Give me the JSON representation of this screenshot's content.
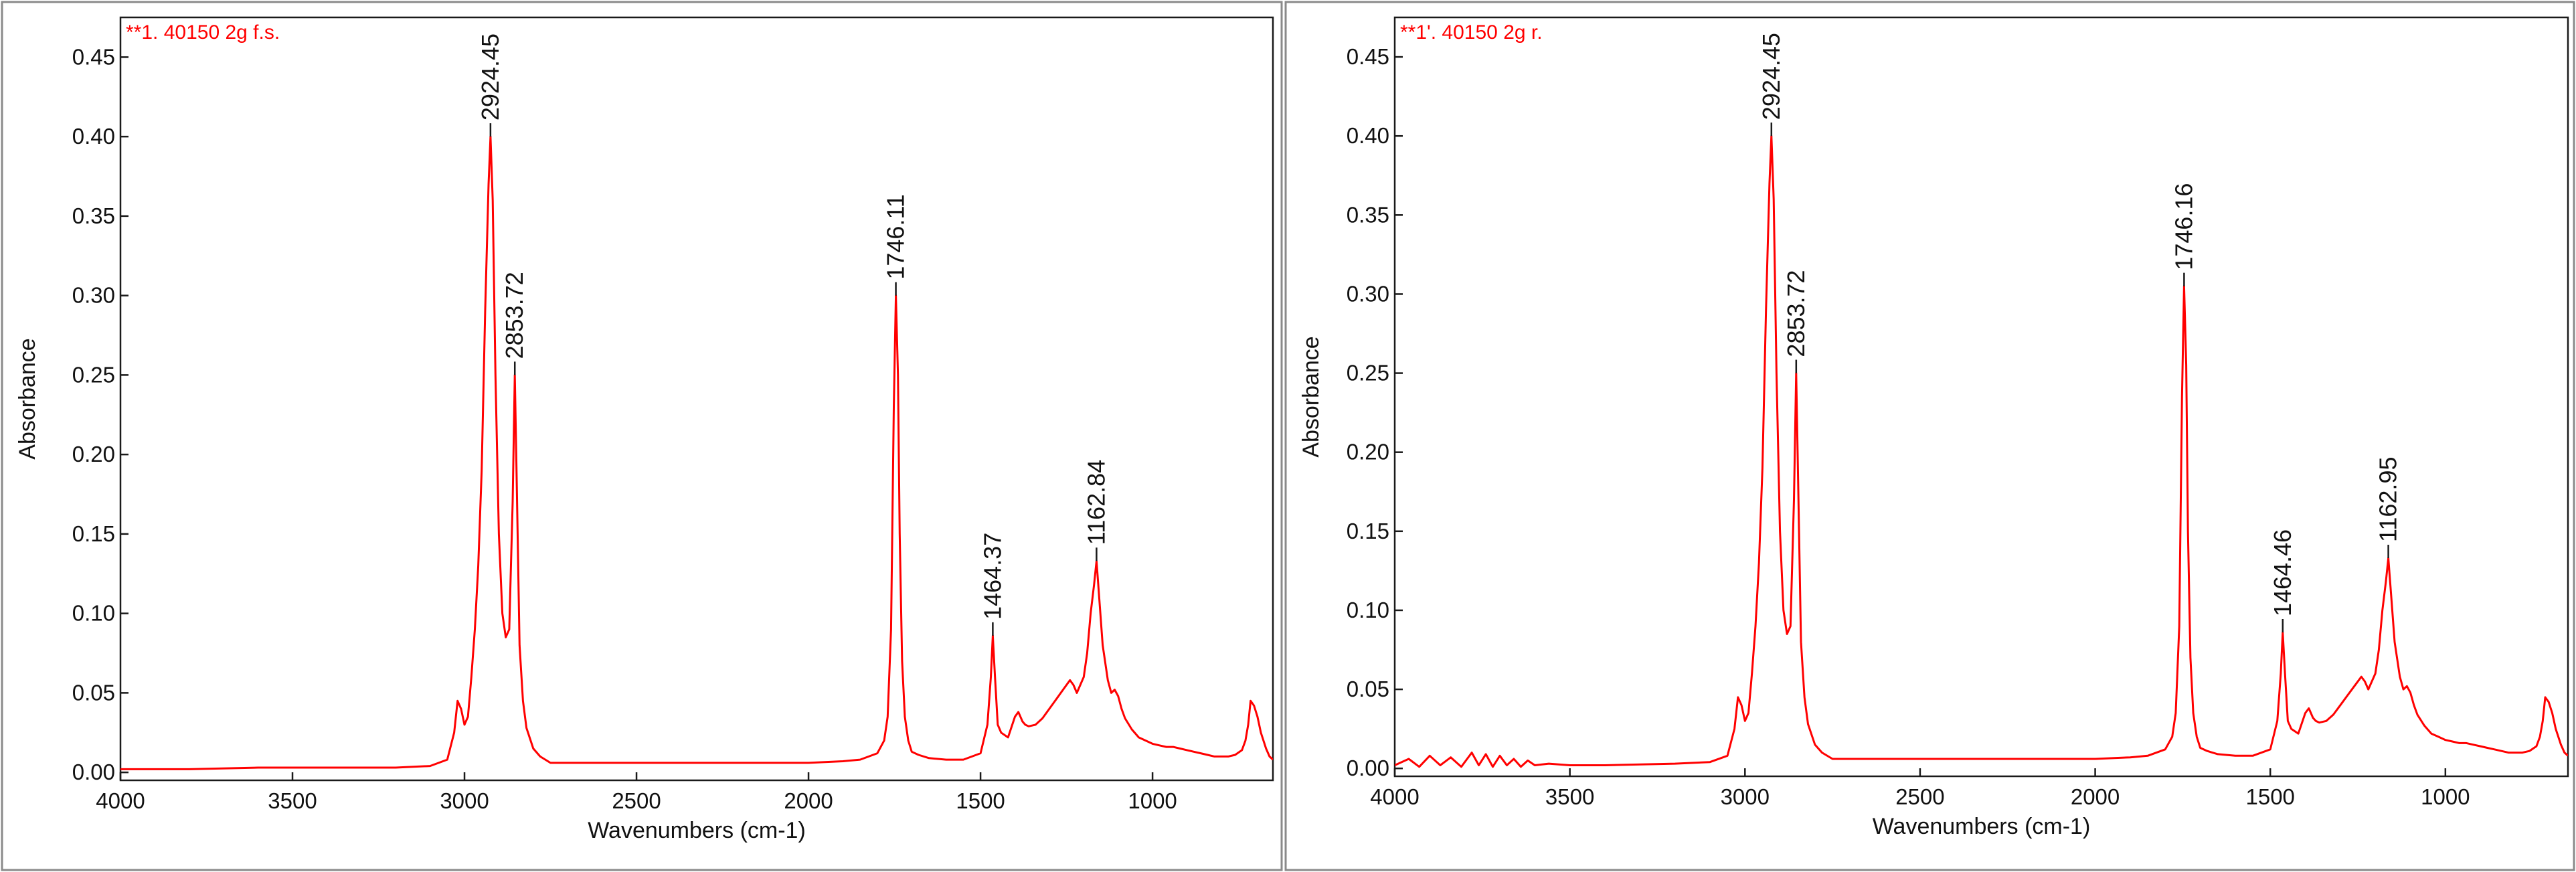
{
  "colors": {
    "spectrum": "#ff0000",
    "title": "#ff0000",
    "axis": "#1a1a1a"
  },
  "chart_data": [
    {
      "type": "line",
      "title": "**1. 40150 2g f.s.",
      "xlabel": "Wavenumbers (cm-1)",
      "ylabel": "Absorbance",
      "xlim": [
        4000,
        650
      ],
      "ylim": [
        -0.005,
        0.475
      ],
      "x_reversed": true,
      "grid": false,
      "xticks": [
        4000,
        3500,
        3000,
        2500,
        2000,
        1500,
        1000
      ],
      "xtick_labels": [
        "4000",
        "3500",
        "3000",
        "2500",
        "2000",
        "1500",
        "1000"
      ],
      "yticks": [
        0.0,
        0.05,
        0.1,
        0.15,
        0.2,
        0.25,
        0.3,
        0.35,
        0.4,
        0.45
      ],
      "ytick_labels": [
        "0.00",
        "0.05",
        "0.10",
        "0.15",
        "0.20",
        "0.25",
        "0.30",
        "0.35",
        "0.40",
        "0.45"
      ],
      "peaks": [
        {
          "x": 2924.45,
          "y": 0.4,
          "label": "2924.45"
        },
        {
          "x": 2853.72,
          "y": 0.25,
          "label": "2853.72"
        },
        {
          "x": 1746.11,
          "y": 0.3,
          "label": "1746.11"
        },
        {
          "x": 1464.37,
          "y": 0.086,
          "label": "1464.37"
        },
        {
          "x": 1162.84,
          "y": 0.133,
          "label": "1162.84"
        }
      ],
      "series": [
        {
          "x": [
            4000,
            3800,
            3600,
            3400,
            3200,
            3100,
            3050,
            3030,
            3020,
            3010,
            3000,
            2990,
            2980,
            2970,
            2960,
            2950,
            2940,
            2930,
            2924.45,
            2918,
            2910,
            2900,
            2890,
            2880,
            2870,
            2860,
            2853.72,
            2848,
            2840,
            2830,
            2820,
            2800,
            2780,
            2750,
            2700,
            2600,
            2500,
            2400,
            2300,
            2200,
            2100,
            2000,
            1900,
            1850,
            1800,
            1780,
            1770,
            1760,
            1752,
            1746.11,
            1740,
            1735,
            1728,
            1720,
            1710,
            1700,
            1680,
            1650,
            1600,
            1550,
            1500,
            1480,
            1470,
            1464.37,
            1458,
            1450,
            1440,
            1420,
            1400,
            1390,
            1378,
            1370,
            1360,
            1340,
            1320,
            1300,
            1280,
            1260,
            1240,
            1230,
            1220,
            1200,
            1190,
            1180,
            1170,
            1162.84,
            1155,
            1145,
            1130,
            1120,
            1110,
            1100,
            1090,
            1080,
            1060,
            1040,
            1020,
            1000,
            980,
            960,
            940,
            920,
            900,
            880,
            860,
            840,
            820,
            800,
            780,
            760,
            740,
            730,
            722,
            715,
            705,
            695,
            685,
            670,
            660,
            650
          ],
          "y": [
            0.002,
            0.002,
            0.003,
            0.003,
            0.003,
            0.004,
            0.008,
            0.025,
            0.045,
            0.04,
            0.03,
            0.035,
            0.06,
            0.09,
            0.13,
            0.19,
            0.29,
            0.37,
            0.4,
            0.36,
            0.25,
            0.15,
            0.1,
            0.085,
            0.09,
            0.17,
            0.25,
            0.18,
            0.08,
            0.045,
            0.028,
            0.015,
            0.01,
            0.006,
            0.006,
            0.006,
            0.006,
            0.006,
            0.006,
            0.006,
            0.006,
            0.006,
            0.007,
            0.008,
            0.012,
            0.02,
            0.035,
            0.09,
            0.23,
            0.3,
            0.25,
            0.15,
            0.07,
            0.035,
            0.02,
            0.013,
            0.011,
            0.009,
            0.008,
            0.008,
            0.012,
            0.03,
            0.06,
            0.086,
            0.06,
            0.03,
            0.025,
            0.022,
            0.035,
            0.038,
            0.032,
            0.03,
            0.029,
            0.03,
            0.034,
            0.04,
            0.046,
            0.052,
            0.058,
            0.055,
            0.05,
            0.06,
            0.075,
            0.1,
            0.118,
            0.133,
            0.11,
            0.08,
            0.058,
            0.05,
            0.052,
            0.048,
            0.04,
            0.034,
            0.027,
            0.022,
            0.02,
            0.018,
            0.017,
            0.016,
            0.016,
            0.015,
            0.014,
            0.013,
            0.012,
            0.011,
            0.01,
            0.01,
            0.01,
            0.011,
            0.014,
            0.02,
            0.03,
            0.045,
            0.042,
            0.035,
            0.025,
            0.015,
            0.01,
            0.008
          ]
        }
      ]
    },
    {
      "type": "line",
      "title": "**1'. 40150 2g r.",
      "xlabel": "Wavenumbers (cm-1)",
      "ylabel": "Absorbance",
      "xlim": [
        4000,
        650
      ],
      "ylim": [
        -0.005,
        0.475
      ],
      "x_reversed": true,
      "grid": false,
      "xticks": [
        4000,
        3500,
        3000,
        2500,
        2000,
        1500,
        1000
      ],
      "xtick_labels": [
        "4000",
        "3500",
        "3000",
        "2500",
        "2000",
        "1500",
        "1000"
      ],
      "yticks": [
        0.0,
        0.05,
        0.1,
        0.15,
        0.2,
        0.25,
        0.3,
        0.35,
        0.4,
        0.45
      ],
      "ytick_labels": [
        "0.00",
        "0.05",
        "0.10",
        "0.15",
        "0.20",
        "0.25",
        "0.30",
        "0.35",
        "0.40",
        "0.45"
      ],
      "peaks": [
        {
          "x": 2924.45,
          "y": 0.4,
          "label": "2924.45"
        },
        {
          "x": 2853.72,
          "y": 0.25,
          "label": "2853.72"
        },
        {
          "x": 1746.16,
          "y": 0.305,
          "label": "1746.16"
        },
        {
          "x": 1464.46,
          "y": 0.086,
          "label": "1464.46"
        },
        {
          "x": 1162.95,
          "y": 0.133,
          "label": "1162.95"
        }
      ],
      "series": [
        {
          "x": [
            4000,
            3960,
            3930,
            3900,
            3870,
            3840,
            3810,
            3780,
            3760,
            3740,
            3720,
            3700,
            3680,
            3660,
            3640,
            3620,
            3600,
            3560,
            3500,
            3400,
            3200,
            3100,
            3050,
            3030,
            3020,
            3010,
            3000,
            2990,
            2980,
            2970,
            2960,
            2950,
            2940,
            2930,
            2924.45,
            2918,
            2910,
            2900,
            2890,
            2880,
            2870,
            2860,
            2853.72,
            2848,
            2840,
            2830,
            2820,
            2800,
            2780,
            2750,
            2700,
            2600,
            2500,
            2400,
            2300,
            2200,
            2100,
            2000,
            1900,
            1850,
            1800,
            1780,
            1770,
            1760,
            1752,
            1746.16,
            1740,
            1735,
            1728,
            1720,
            1710,
            1700,
            1680,
            1650,
            1600,
            1550,
            1500,
            1480,
            1470,
            1464.46,
            1458,
            1450,
            1440,
            1420,
            1400,
            1390,
            1378,
            1370,
            1360,
            1340,
            1320,
            1300,
            1280,
            1260,
            1240,
            1230,
            1220,
            1200,
            1190,
            1180,
            1170,
            1162.95,
            1155,
            1145,
            1130,
            1120,
            1110,
            1100,
            1090,
            1080,
            1060,
            1040,
            1020,
            1000,
            980,
            960,
            940,
            920,
            900,
            880,
            860,
            840,
            820,
            800,
            780,
            760,
            740,
            730,
            722,
            715,
            705,
            695,
            685,
            670,
            660,
            650
          ],
          "y": [
            0.002,
            0.006,
            0.001,
            0.008,
            0.002,
            0.007,
            0.001,
            0.01,
            0.002,
            0.009,
            0.001,
            0.008,
            0.002,
            0.006,
            0.001,
            0.005,
            0.002,
            0.003,
            0.002,
            0.002,
            0.003,
            0.004,
            0.008,
            0.025,
            0.045,
            0.04,
            0.03,
            0.035,
            0.06,
            0.09,
            0.13,
            0.19,
            0.29,
            0.37,
            0.4,
            0.36,
            0.25,
            0.15,
            0.1,
            0.085,
            0.09,
            0.17,
            0.25,
            0.18,
            0.08,
            0.045,
            0.028,
            0.015,
            0.01,
            0.006,
            0.006,
            0.006,
            0.006,
            0.006,
            0.006,
            0.006,
            0.006,
            0.006,
            0.007,
            0.008,
            0.012,
            0.02,
            0.035,
            0.09,
            0.235,
            0.305,
            0.255,
            0.15,
            0.07,
            0.035,
            0.02,
            0.013,
            0.011,
            0.009,
            0.008,
            0.008,
            0.012,
            0.03,
            0.06,
            0.086,
            0.06,
            0.03,
            0.025,
            0.022,
            0.035,
            0.038,
            0.032,
            0.03,
            0.029,
            0.03,
            0.034,
            0.04,
            0.046,
            0.052,
            0.058,
            0.055,
            0.05,
            0.06,
            0.075,
            0.1,
            0.118,
            0.133,
            0.11,
            0.08,
            0.058,
            0.05,
            0.052,
            0.048,
            0.04,
            0.034,
            0.027,
            0.022,
            0.02,
            0.018,
            0.017,
            0.016,
            0.016,
            0.015,
            0.014,
            0.013,
            0.012,
            0.011,
            0.01,
            0.01,
            0.01,
            0.011,
            0.014,
            0.02,
            0.03,
            0.045,
            0.042,
            0.035,
            0.025,
            0.015,
            0.01,
            0.008
          ]
        }
      ]
    }
  ]
}
